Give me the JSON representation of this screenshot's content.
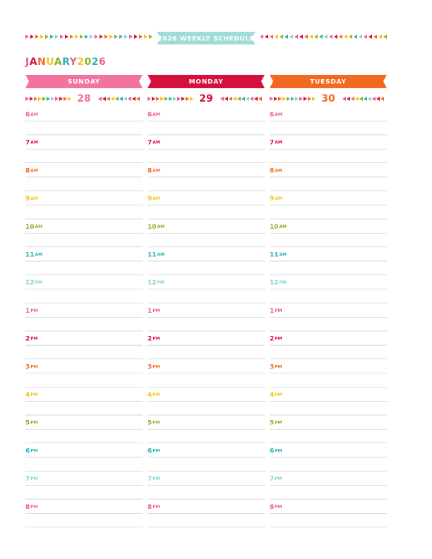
{
  "header": {
    "title": "2026 WEEKLY SCHEDULE",
    "month": "JANUARY",
    "year": "2026"
  },
  "days": [
    {
      "name": "SUNDAY",
      "date": "28"
    },
    {
      "name": "MONDAY",
      "date": "29"
    },
    {
      "name": "TUESDAY",
      "date": "30"
    }
  ],
  "hours": [
    {
      "hour": "6",
      "period": "AM"
    },
    {
      "hour": "7",
      "period": "AM"
    },
    {
      "hour": "8",
      "period": "AM"
    },
    {
      "hour": "9",
      "period": "AM"
    },
    {
      "hour": "10",
      "period": "AM"
    },
    {
      "hour": "11",
      "period": "AM"
    },
    {
      "hour": "12",
      "period": "PM"
    },
    {
      "hour": "1",
      "period": "PM"
    },
    {
      "hour": "2",
      "period": "PM"
    },
    {
      "hour": "3",
      "period": "PM"
    },
    {
      "hour": "4",
      "period": "PM"
    },
    {
      "hour": "5",
      "period": "PM"
    },
    {
      "hour": "6",
      "period": "PM"
    },
    {
      "hour": "7",
      "period": "PM"
    },
    {
      "hour": "8",
      "period": "PM"
    }
  ]
}
